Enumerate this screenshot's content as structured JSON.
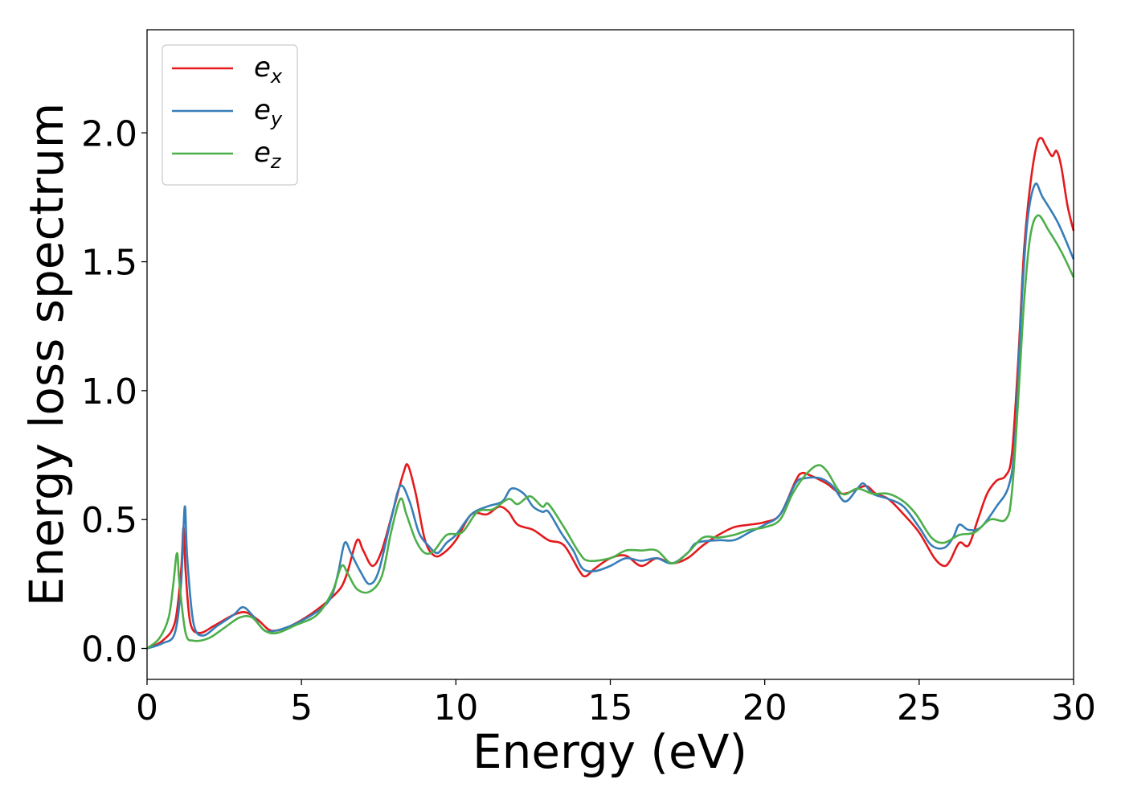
{
  "chart_data": {
    "type": "line",
    "title": "",
    "xlabel": "Energy (eV)",
    "ylabel": "Energy loss spectrum",
    "xlim": [
      0,
      30
    ],
    "ylim": [
      -0.12,
      2.4
    ],
    "xticks": [
      0,
      5,
      10,
      15,
      20,
      25,
      30
    ],
    "xtick_labels": [
      "0",
      "5",
      "10",
      "15",
      "20",
      "25",
      "30"
    ],
    "yticks": [
      0.0,
      0.5,
      1.0,
      1.5,
      2.0
    ],
    "ytick_labels": [
      "0.0",
      "0.5",
      "1.0",
      "1.5",
      "2.0"
    ],
    "grid": false,
    "legend_position": "top-left",
    "series": [
      {
        "name": "e_x",
        "label_base": "e",
        "label_sub": "x",
        "color": "#e41a1c",
        "points": [
          [
            0,
            0
          ],
          [
            0.5,
            0.03
          ],
          [
            0.9,
            0.1
          ],
          [
            1.1,
            0.3
          ],
          [
            1.18,
            0.47
          ],
          [
            1.25,
            0.3
          ],
          [
            1.4,
            0.1
          ],
          [
            1.7,
            0.06
          ],
          [
            2.2,
            0.09
          ],
          [
            2.8,
            0.13
          ],
          [
            3.2,
            0.14
          ],
          [
            3.6,
            0.11
          ],
          [
            4.0,
            0.07
          ],
          [
            4.5,
            0.08
          ],
          [
            5.0,
            0.11
          ],
          [
            5.5,
            0.15
          ],
          [
            6.0,
            0.2
          ],
          [
            6.3,
            0.24
          ],
          [
            6.5,
            0.3
          ],
          [
            6.8,
            0.42
          ],
          [
            7.0,
            0.38
          ],
          [
            7.3,
            0.32
          ],
          [
            7.6,
            0.38
          ],
          [
            8.0,
            0.55
          ],
          [
            8.3,
            0.68
          ],
          [
            8.45,
            0.71
          ],
          [
            8.7,
            0.6
          ],
          [
            9.0,
            0.42
          ],
          [
            9.3,
            0.36
          ],
          [
            9.6,
            0.37
          ],
          [
            10.0,
            0.42
          ],
          [
            10.5,
            0.52
          ],
          [
            11.0,
            0.52
          ],
          [
            11.4,
            0.55
          ],
          [
            11.7,
            0.53
          ],
          [
            12.0,
            0.48
          ],
          [
            12.5,
            0.46
          ],
          [
            13.0,
            0.42
          ],
          [
            13.5,
            0.4
          ],
          [
            14.0,
            0.3
          ],
          [
            14.2,
            0.28
          ],
          [
            14.5,
            0.31
          ],
          [
            15.0,
            0.35
          ],
          [
            15.5,
            0.36
          ],
          [
            16.0,
            0.32
          ],
          [
            16.5,
            0.35
          ],
          [
            17.0,
            0.33
          ],
          [
            17.5,
            0.35
          ],
          [
            18.0,
            0.4
          ],
          [
            18.5,
            0.44
          ],
          [
            19.0,
            0.47
          ],
          [
            19.5,
            0.48
          ],
          [
            20.0,
            0.49
          ],
          [
            20.5,
            0.52
          ],
          [
            21.0,
            0.65
          ],
          [
            21.2,
            0.68
          ],
          [
            21.5,
            0.67
          ],
          [
            22.0,
            0.64
          ],
          [
            22.5,
            0.6
          ],
          [
            23.0,
            0.62
          ],
          [
            23.3,
            0.63
          ],
          [
            23.6,
            0.6
          ],
          [
            24.0,
            0.58
          ],
          [
            24.5,
            0.52
          ],
          [
            25.0,
            0.45
          ],
          [
            25.5,
            0.35
          ],
          [
            25.8,
            0.32
          ],
          [
            26.0,
            0.34
          ],
          [
            26.3,
            0.41
          ],
          [
            26.6,
            0.4
          ],
          [
            26.9,
            0.5
          ],
          [
            27.2,
            0.6
          ],
          [
            27.5,
            0.65
          ],
          [
            27.8,
            0.67
          ],
          [
            28.0,
            0.75
          ],
          [
            28.2,
            1.1
          ],
          [
            28.4,
            1.55
          ],
          [
            28.6,
            1.8
          ],
          [
            28.8,
            1.95
          ],
          [
            28.95,
            1.98
          ],
          [
            29.1,
            1.95
          ],
          [
            29.3,
            1.91
          ],
          [
            29.45,
            1.93
          ],
          [
            29.6,
            1.87
          ],
          [
            29.8,
            1.72
          ],
          [
            30,
            1.62
          ]
        ]
      },
      {
        "name": "e_y",
        "label_base": "e",
        "label_sub": "y",
        "color": "#377eb8",
        "points": [
          [
            0,
            0
          ],
          [
            0.5,
            0.02
          ],
          [
            0.9,
            0.06
          ],
          [
            1.1,
            0.25
          ],
          [
            1.22,
            0.55
          ],
          [
            1.3,
            0.35
          ],
          [
            1.5,
            0.1
          ],
          [
            1.8,
            0.05
          ],
          [
            2.3,
            0.09
          ],
          [
            2.8,
            0.13
          ],
          [
            3.1,
            0.16
          ],
          [
            3.4,
            0.13
          ],
          [
            3.8,
            0.07
          ],
          [
            4.2,
            0.07
          ],
          [
            4.7,
            0.09
          ],
          [
            5.2,
            0.12
          ],
          [
            5.7,
            0.16
          ],
          [
            6.0,
            0.21
          ],
          [
            6.2,
            0.3
          ],
          [
            6.4,
            0.41
          ],
          [
            6.6,
            0.37
          ],
          [
            6.9,
            0.3
          ],
          [
            7.2,
            0.25
          ],
          [
            7.5,
            0.3
          ],
          [
            7.9,
            0.5
          ],
          [
            8.2,
            0.63
          ],
          [
            8.5,
            0.57
          ],
          [
            8.8,
            0.45
          ],
          [
            9.1,
            0.4
          ],
          [
            9.4,
            0.37
          ],
          [
            9.7,
            0.41
          ],
          [
            10.0,
            0.44
          ],
          [
            10.5,
            0.52
          ],
          [
            11.0,
            0.55
          ],
          [
            11.5,
            0.57
          ],
          [
            11.8,
            0.62
          ],
          [
            12.2,
            0.6
          ],
          [
            12.5,
            0.55
          ],
          [
            12.8,
            0.53
          ],
          [
            13.0,
            0.53
          ],
          [
            13.4,
            0.45
          ],
          [
            13.8,
            0.38
          ],
          [
            14.1,
            0.31
          ],
          [
            14.5,
            0.3
          ],
          [
            15.0,
            0.32
          ],
          [
            15.5,
            0.35
          ],
          [
            16.0,
            0.34
          ],
          [
            16.5,
            0.35
          ],
          [
            17.0,
            0.33
          ],
          [
            17.5,
            0.37
          ],
          [
            17.8,
            0.41
          ],
          [
            18.5,
            0.42
          ],
          [
            19.0,
            0.42
          ],
          [
            19.5,
            0.45
          ],
          [
            20.0,
            0.48
          ],
          [
            20.5,
            0.52
          ],
          [
            21.0,
            0.64
          ],
          [
            21.3,
            0.66
          ],
          [
            21.8,
            0.66
          ],
          [
            22.2,
            0.63
          ],
          [
            22.6,
            0.57
          ],
          [
            23.0,
            0.62
          ],
          [
            23.2,
            0.64
          ],
          [
            23.5,
            0.6
          ],
          [
            24.0,
            0.58
          ],
          [
            24.5,
            0.55
          ],
          [
            25.0,
            0.47
          ],
          [
            25.4,
            0.4
          ],
          [
            25.8,
            0.39
          ],
          [
            26.1,
            0.43
          ],
          [
            26.3,
            0.48
          ],
          [
            26.6,
            0.46
          ],
          [
            27.0,
            0.47
          ],
          [
            27.5,
            0.55
          ],
          [
            27.9,
            0.63
          ],
          [
            28.1,
            0.8
          ],
          [
            28.3,
            1.3
          ],
          [
            28.5,
            1.65
          ],
          [
            28.75,
            1.8
          ],
          [
            29.0,
            1.75
          ],
          [
            29.5,
            1.65
          ],
          [
            30,
            1.51
          ]
        ]
      },
      {
        "name": "e_z",
        "label_base": "e",
        "label_sub": "z",
        "color": "#4daf4a",
        "points": [
          [
            0,
            0
          ],
          [
            0.4,
            0.04
          ],
          [
            0.7,
            0.12
          ],
          [
            0.85,
            0.25
          ],
          [
            0.97,
            0.37
          ],
          [
            1.05,
            0.25
          ],
          [
            1.25,
            0.06
          ],
          [
            1.5,
            0.03
          ],
          [
            2.0,
            0.04
          ],
          [
            2.5,
            0.08
          ],
          [
            3.0,
            0.12
          ],
          [
            3.4,
            0.12
          ],
          [
            3.8,
            0.07
          ],
          [
            4.2,
            0.06
          ],
          [
            4.8,
            0.09
          ],
          [
            5.5,
            0.13
          ],
          [
            6.0,
            0.22
          ],
          [
            6.3,
            0.32
          ],
          [
            6.5,
            0.29
          ],
          [
            6.8,
            0.23
          ],
          [
            7.2,
            0.22
          ],
          [
            7.6,
            0.28
          ],
          [
            7.9,
            0.45
          ],
          [
            8.2,
            0.58
          ],
          [
            8.4,
            0.52
          ],
          [
            8.7,
            0.42
          ],
          [
            9.0,
            0.37
          ],
          [
            9.3,
            0.38
          ],
          [
            9.7,
            0.44
          ],
          [
            10.2,
            0.45
          ],
          [
            10.7,
            0.53
          ],
          [
            11.2,
            0.54
          ],
          [
            11.7,
            0.58
          ],
          [
            12.0,
            0.56
          ],
          [
            12.4,
            0.59
          ],
          [
            12.8,
            0.55
          ],
          [
            13.0,
            0.56
          ],
          [
            13.5,
            0.47
          ],
          [
            14.0,
            0.37
          ],
          [
            14.3,
            0.34
          ],
          [
            15.0,
            0.35
          ],
          [
            15.5,
            0.38
          ],
          [
            16.0,
            0.38
          ],
          [
            16.5,
            0.38
          ],
          [
            17.0,
            0.33
          ],
          [
            17.5,
            0.37
          ],
          [
            18.0,
            0.43
          ],
          [
            18.5,
            0.43
          ],
          [
            19.0,
            0.44
          ],
          [
            19.5,
            0.46
          ],
          [
            20.0,
            0.47
          ],
          [
            20.5,
            0.5
          ],
          [
            20.9,
            0.6
          ],
          [
            21.3,
            0.67
          ],
          [
            21.7,
            0.71
          ],
          [
            22.0,
            0.69
          ],
          [
            22.5,
            0.6
          ],
          [
            23.0,
            0.62
          ],
          [
            23.5,
            0.6
          ],
          [
            24.0,
            0.6
          ],
          [
            24.5,
            0.57
          ],
          [
            24.9,
            0.52
          ],
          [
            25.4,
            0.43
          ],
          [
            25.8,
            0.41
          ],
          [
            26.3,
            0.44
          ],
          [
            26.8,
            0.45
          ],
          [
            27.3,
            0.5
          ],
          [
            27.8,
            0.5
          ],
          [
            28.0,
            0.6
          ],
          [
            28.2,
            0.95
          ],
          [
            28.4,
            1.35
          ],
          [
            28.6,
            1.6
          ],
          [
            28.85,
            1.68
          ],
          [
            29.2,
            1.62
          ],
          [
            29.6,
            1.54
          ],
          [
            30,
            1.44
          ]
        ]
      }
    ]
  }
}
